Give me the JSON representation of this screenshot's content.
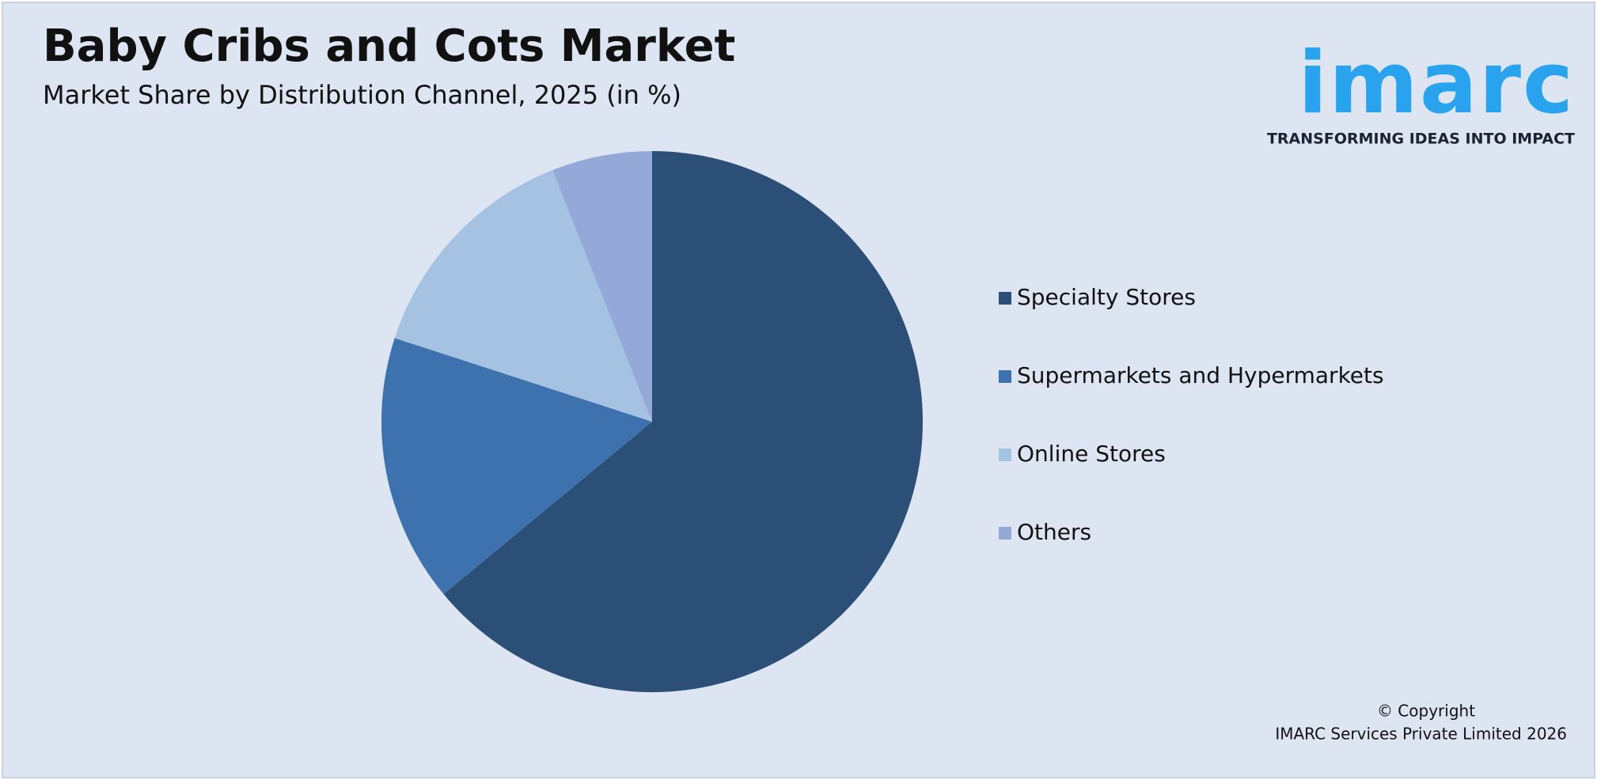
{
  "chart_data": {
    "type": "pie",
    "title": "Baby Cribs and Cots Market",
    "subtitle": "Market Share by Distribution Channel, 2025 (in %)",
    "categories": [
      "Specialty Stores",
      "Supermarkets and Hypermarkets",
      "Online Stores",
      "Others"
    ],
    "values": [
      64,
      16,
      14,
      6
    ],
    "colors": [
      "#2c4f77",
      "#3e72ae",
      "#a6c2e3",
      "#95a9d8"
    ],
    "legend": "right"
  },
  "logo": {
    "name": "imarc",
    "tagline": "TRANSFORMING IDEAS INTO IMPACT"
  },
  "footer": {
    "copyright": "© Copyright",
    "company": "IMARC Services Private Limited 2026"
  }
}
